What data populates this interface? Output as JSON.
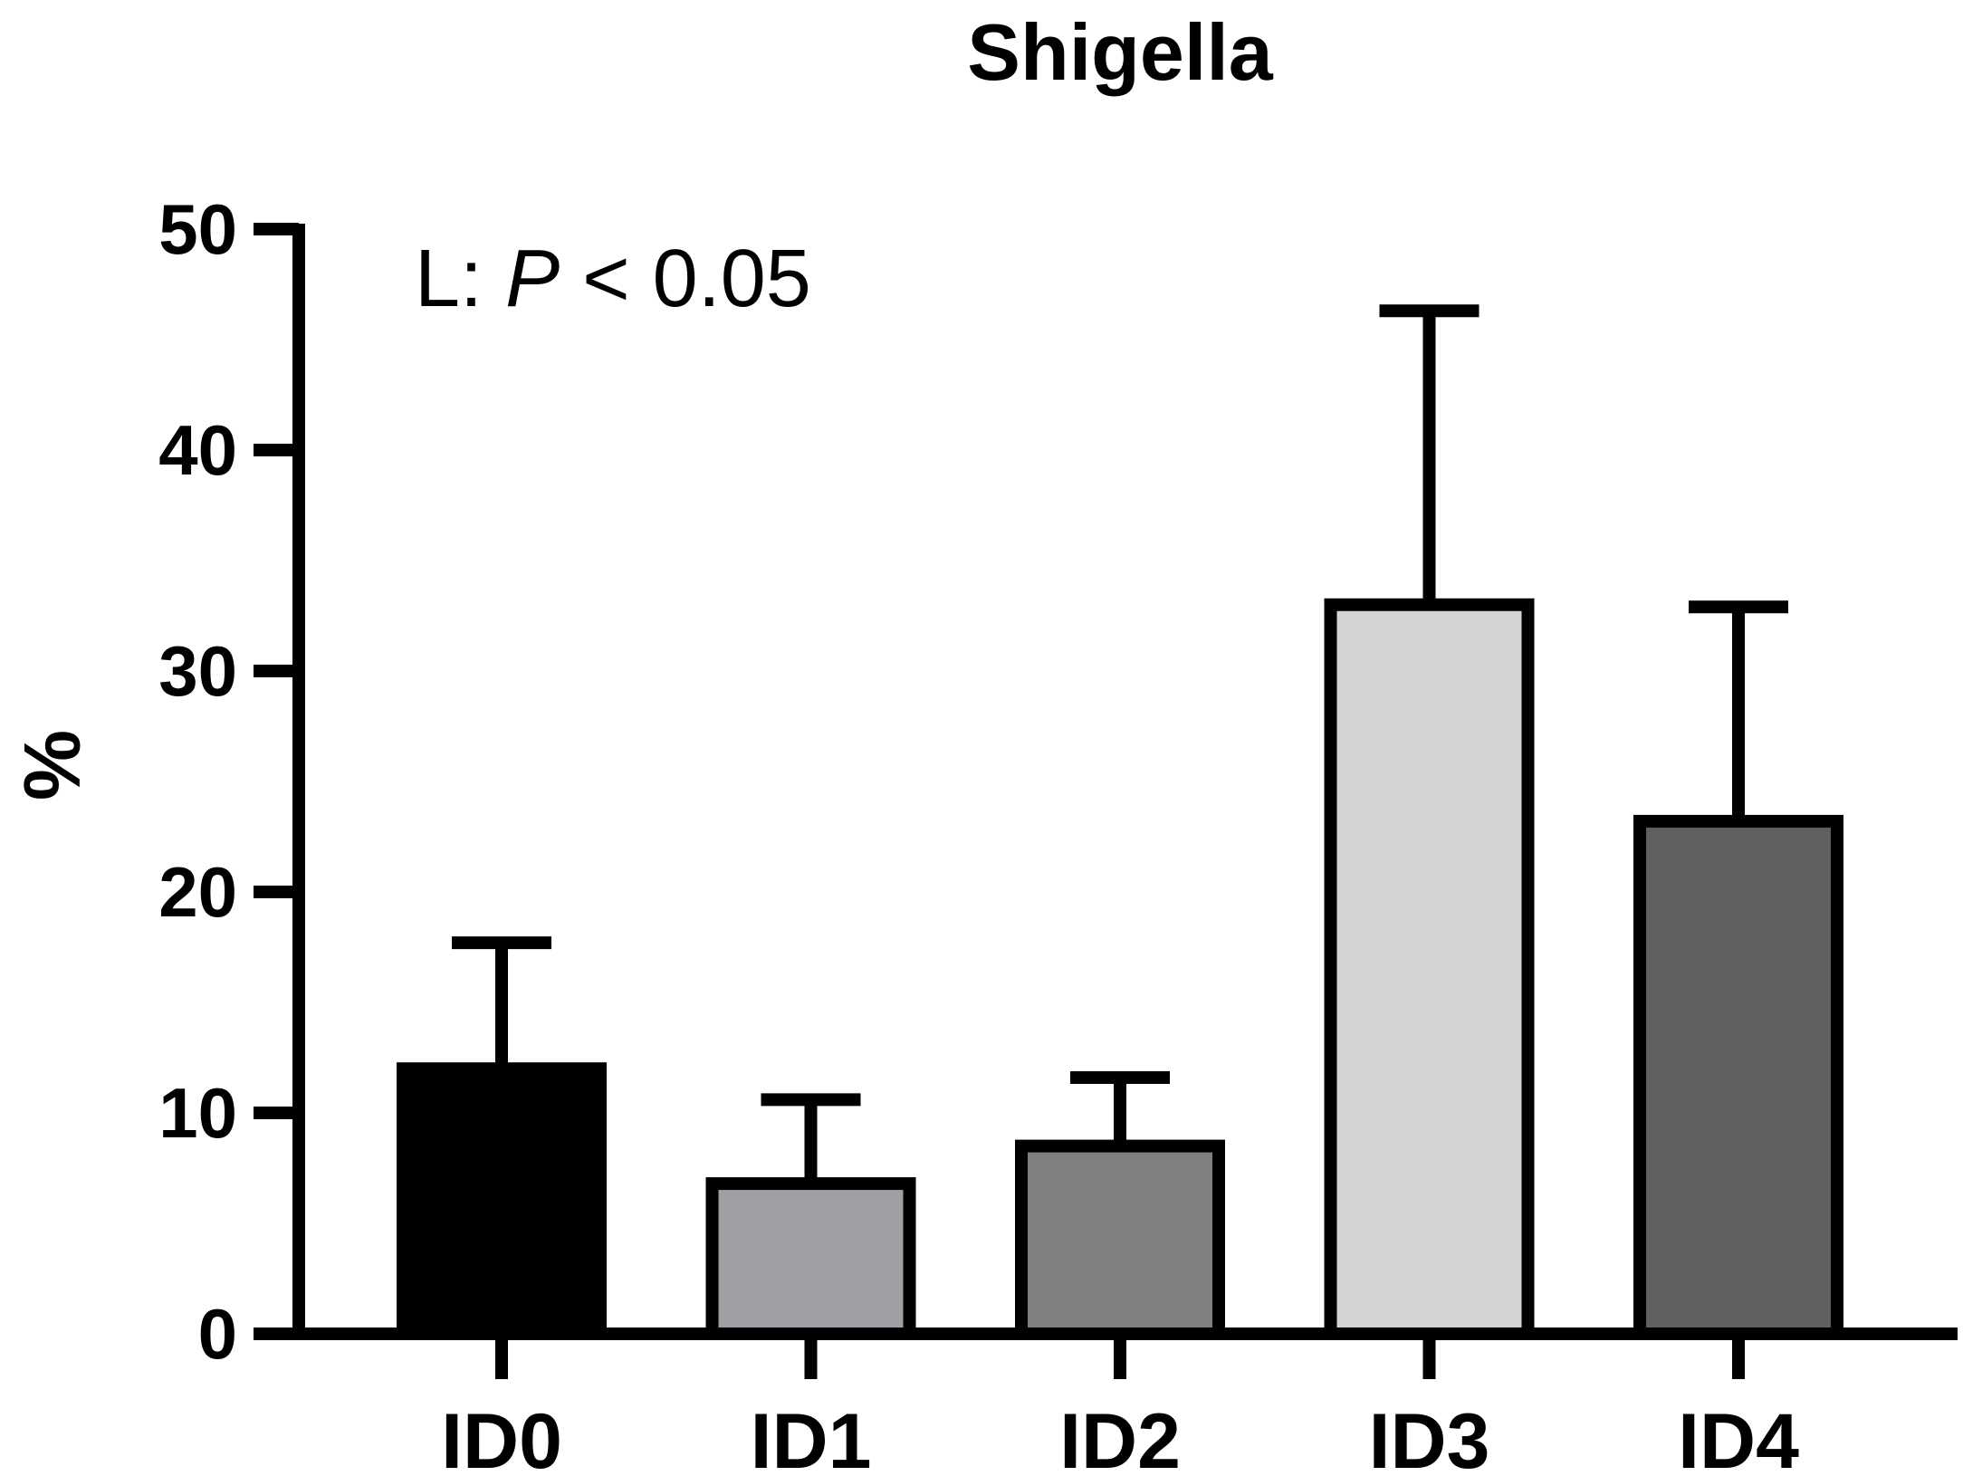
{
  "chart_data": {
    "type": "bar",
    "title": "Shigella",
    "xlabel": "",
    "ylabel": "%",
    "ylim": [
      0,
      50
    ],
    "yticks": [
      0,
      10,
      20,
      30,
      40,
      50
    ],
    "ytick_labels": [
      "0",
      "10",
      "20",
      "30",
      "40",
      "50"
    ],
    "categories": [
      "ID0",
      "ID1",
      "ID2",
      "ID3",
      "ID4"
    ],
    "values": [
      12.0,
      6.8,
      8.5,
      33.0,
      23.2
    ],
    "error_upper": [
      17.7,
      10.6,
      11.6,
      46.3,
      32.9
    ],
    "colors": [
      "#000000",
      "#a0a0a4",
      "#808080",
      "#d4d4d4",
      "#606060"
    ],
    "annotation": {
      "prefix": "L: ",
      "italic": "P",
      "suffix": " < 0.05"
    }
  }
}
